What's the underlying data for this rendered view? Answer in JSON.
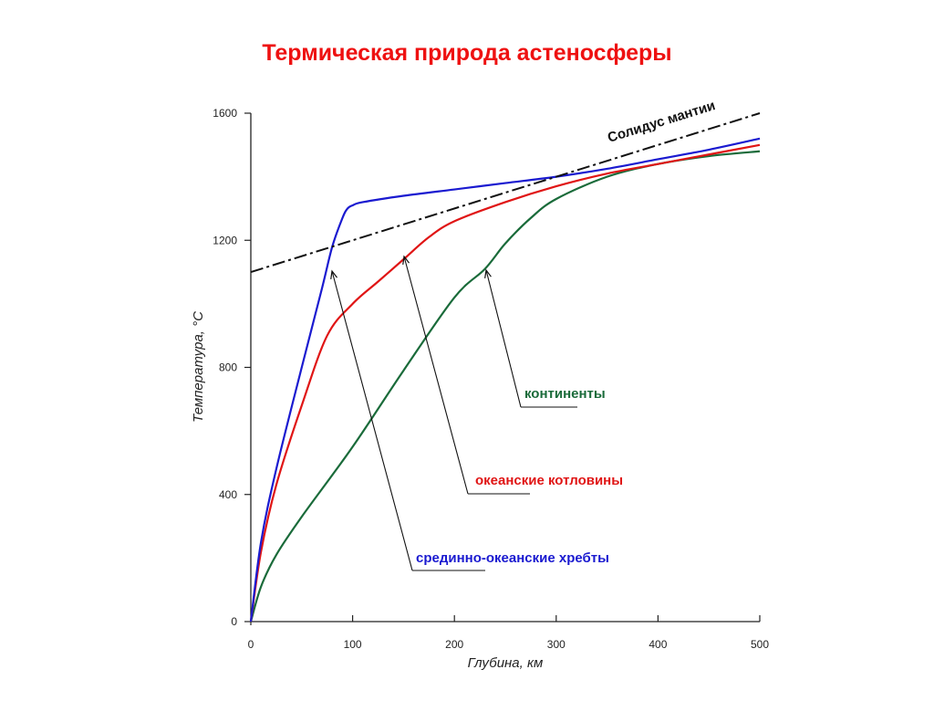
{
  "title": "Термическая природа астеносферы",
  "colors": {
    "title": "#ee1111",
    "ridges": "#1a1ad0",
    "basins": "#e01515",
    "continents": "#1a6b3a",
    "solidus": "#111111"
  },
  "axes": {
    "xlabel": "Глубина, км",
    "ylabel": "Температура, °С",
    "xticks": [
      "0",
      "100",
      "200",
      "300",
      "400",
      "500"
    ],
    "yticks": [
      "0",
      "400",
      "800",
      "1200",
      "1600"
    ]
  },
  "labels": {
    "solidus": "Солидус мантии",
    "continents": "континенты",
    "basins": "океанские котловины",
    "ridges": "срединно-океанские хребты"
  },
  "chart_data": {
    "type": "line",
    "title": "Термическая природа астеносферы",
    "xlabel": "Глубина, км",
    "ylabel": "Температура, °С",
    "xlim": [
      0,
      500
    ],
    "ylim": [
      0,
      1600
    ],
    "xticks": [
      0,
      100,
      200,
      300,
      400,
      500
    ],
    "yticks": [
      0,
      400,
      800,
      1200,
      1600
    ],
    "grid": false,
    "legend": "inline annotations with arrows",
    "series": [
      {
        "name": "срединно-океанские хребты",
        "color": "#1a1ad0",
        "x": [
          0,
          10,
          25,
          50,
          70,
          80,
          90,
          95,
          100,
          110,
          150,
          200,
          250,
          300,
          350,
          400,
          450,
          500
        ],
        "y": [
          0,
          250,
          480,
          800,
          1050,
          1180,
          1270,
          1300,
          1310,
          1320,
          1340,
          1360,
          1380,
          1400,
          1425,
          1455,
          1485,
          1520
        ]
      },
      {
        "name": "океанские котловины",
        "color": "#e01515",
        "x": [
          0,
          10,
          25,
          50,
          75,
          100,
          125,
          150,
          175,
          200,
          250,
          300,
          350,
          400,
          450,
          500
        ],
        "y": [
          0,
          220,
          430,
          680,
          900,
          1000,
          1070,
          1140,
          1210,
          1260,
          1320,
          1370,
          1410,
          1440,
          1470,
          1500
        ]
      },
      {
        "name": "континенты",
        "color": "#1a6b3a",
        "x": [
          0,
          10,
          25,
          50,
          100,
          150,
          200,
          230,
          250,
          275,
          300,
          350,
          400,
          450,
          500
        ],
        "y": [
          0,
          110,
          210,
          330,
          550,
          790,
          1020,
          1110,
          1190,
          1270,
          1330,
          1400,
          1440,
          1465,
          1480
        ]
      },
      {
        "name": "Солидус мантии",
        "color": "#111111",
        "style": "dash-dot",
        "x": [
          0,
          500
        ],
        "y": [
          1100,
          1600
        ]
      }
    ],
    "annotations": [
      {
        "text": "Солидус мантии",
        "x": 430,
        "y": 1560
      },
      {
        "text": "континенты",
        "arrow_to": [
          232,
          1110
        ]
      },
      {
        "text": "океанские котловины",
        "arrow_to": [
          150,
          1150
        ]
      },
      {
        "text": "срединно-океанские хребты",
        "arrow_to": [
          80,
          1110
        ]
      }
    ]
  }
}
